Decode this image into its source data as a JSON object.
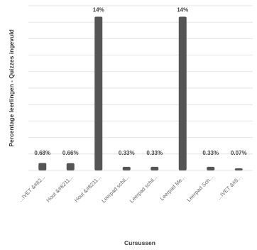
{
  "chart_data": {
    "type": "bar",
    "title": "",
    "xlabel": "Cursussen",
    "ylabel": "Percentage leerlingen - Quizzes ingevuld",
    "categories": [
      "...IVET &#82...",
      "Hout &#8211...",
      "Hout &#8211...",
      "Leerpad schil...",
      "Leerpad schil...",
      "Leerpad Me...",
      "Leerpad Sch...",
      "...IVET &#8..."
    ],
    "values": [
      0.68,
      0.66,
      14,
      0.33,
      0.33,
      14,
      0.33,
      0.07
    ],
    "value_labels": [
      "0.68%",
      "0.66%",
      "14%",
      "0.33%",
      "0.33%",
      "14%",
      "0.33%",
      "0.07%"
    ],
    "ylim": [
      0,
      15
    ],
    "grid": true,
    "legend": "none",
    "colors": {
      "bar": "#555555",
      "grid": "#e4e4e4"
    }
  }
}
